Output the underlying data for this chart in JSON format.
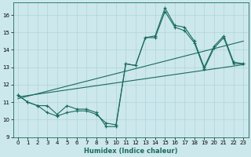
{
  "xlabel": "Humidex (Indice chaleur)",
  "bg_color": "#cce8ec",
  "line_color": "#1a6b5e",
  "grid_color": "#aed4d8",
  "xlim": [
    -0.5,
    23.5
  ],
  "ylim": [
    9,
    16.7
  ],
  "yticks": [
    9,
    10,
    11,
    12,
    13,
    14,
    15,
    16
  ],
  "xticks": [
    0,
    1,
    2,
    3,
    4,
    5,
    6,
    7,
    8,
    9,
    10,
    11,
    12,
    13,
    14,
    15,
    16,
    17,
    18,
    19,
    20,
    21,
    22,
    23
  ],
  "series1": [
    11.4,
    11.0,
    10.8,
    10.8,
    10.3,
    10.8,
    10.6,
    10.6,
    10.4,
    9.6,
    9.6,
    13.2,
    13.1,
    14.7,
    14.8,
    16.4,
    15.4,
    15.3,
    14.5,
    13.0,
    14.2,
    14.8,
    13.3,
    13.2
  ],
  "series2": [
    11.4,
    11.0,
    10.8,
    10.4,
    10.2,
    10.4,
    10.5,
    10.5,
    10.3,
    9.8,
    9.7,
    13.2,
    13.1,
    14.7,
    14.7,
    16.2,
    15.3,
    15.1,
    14.4,
    12.9,
    14.1,
    14.7,
    13.2,
    13.2
  ],
  "trend1_x": [
    0,
    23
  ],
  "trend1_y": [
    11.3,
    13.15
  ],
  "trend2_x": [
    0,
    23
  ],
  "trend2_y": [
    11.2,
    14.5
  ]
}
